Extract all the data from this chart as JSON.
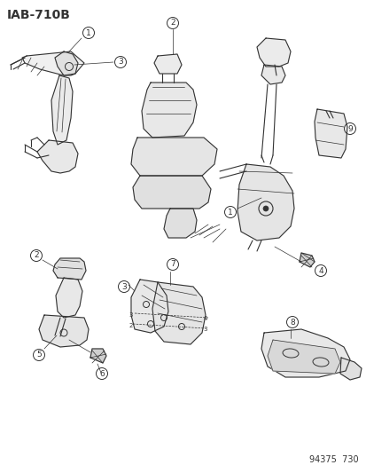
{
  "title": "IAB-710B",
  "footer": "94375  730",
  "bg_color": "#ffffff",
  "title_fontsize": 10,
  "footer_fontsize": 7,
  "figsize": [
    4.14,
    5.33
  ],
  "dpi": 100,
  "line_color": "#333333",
  "lw": 0.8
}
